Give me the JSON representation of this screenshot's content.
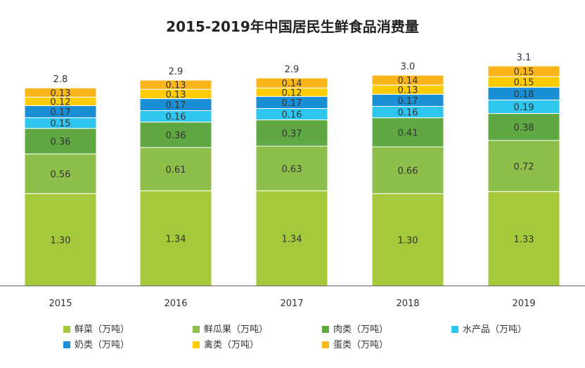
{
  "title": "2015-2019年中国居民生鲜食品消费量",
  "chart_data": {
    "type": "bar",
    "stacked": true,
    "title": "2015-2019年中国居民生鲜食品消费量",
    "categories": [
      "2015",
      "2016",
      "2017",
      "2018",
      "2019"
    ],
    "series": [
      {
        "name": "鲜菜（万吨）",
        "color": "#a5c93a",
        "values": [
          1.3,
          1.34,
          1.34,
          1.3,
          1.33
        ],
        "labels": [
          "1.30",
          "1.34",
          "1.34",
          "1.30",
          "1.33"
        ]
      },
      {
        "name": "鲜瓜果（万吨）",
        "color": "#8dbf4a",
        "values": [
          0.56,
          0.61,
          0.63,
          0.66,
          0.72
        ],
        "labels": [
          "0.56",
          "0.61",
          "0.63",
          "0.66",
          "0.72"
        ]
      },
      {
        "name": "肉类（万吨）",
        "color": "#5fa842",
        "values": [
          0.36,
          0.36,
          0.37,
          0.41,
          0.38
        ],
        "labels": [
          "0.36",
          "0.36",
          "0.37",
          "0.41",
          "0.38"
        ]
      },
      {
        "name": "水产品（万吨）",
        "color": "#2ec5ef",
        "values": [
          0.15,
          0.16,
          0.16,
          0.16,
          0.19
        ],
        "labels": [
          "0.15",
          "0.16",
          "0.16",
          "0.16",
          "0.19"
        ]
      },
      {
        "name": "奶类（万吨）",
        "color": "#1a8fd6",
        "values": [
          0.17,
          0.17,
          0.17,
          0.17,
          0.18
        ],
        "labels": [
          "0.17",
          "0.17",
          "0.17",
          "0.17",
          "0.18"
        ]
      },
      {
        "name": "禽类（万吨）",
        "color": "#ffcc00",
        "values": [
          0.12,
          0.13,
          0.12,
          0.13,
          0.15
        ],
        "labels": [
          "0.12",
          "0.13",
          "0.12",
          "0.13",
          "0.15"
        ]
      },
      {
        "name": "蛋类（万吨）",
        "color": "#f9b51a",
        "values": [
          0.13,
          0.13,
          0.14,
          0.14,
          0.15
        ],
        "labels": [
          "0.13",
          "0.13",
          "0.14",
          "0.14",
          "0.15"
        ]
      }
    ],
    "totals": [
      "2.8",
      "2.9",
      "2.9",
      "3.0",
      "3.1"
    ],
    "ylim": [
      0,
      3.2
    ],
    "grid": false,
    "legend_position": "bottom"
  }
}
